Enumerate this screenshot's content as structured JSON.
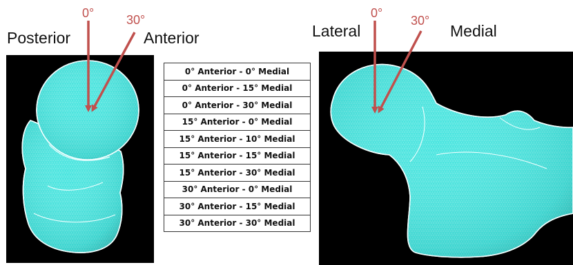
{
  "labels": {
    "posterior": "Posterior",
    "anterior": "Anterior",
    "lateral": "Lateral",
    "medial": "Medial"
  },
  "angles": {
    "left_zero": "0°",
    "left_thirty": "30°",
    "right_zero": "0°",
    "right_thirty": "30°"
  },
  "configurations": [
    "0° Anterior - 0° Medial",
    "0° Anterior - 15° Medial",
    "0° Anterior - 30° Medial",
    "15° Anterior - 0° Medial",
    "15° Anterior - 10° Medial",
    "15° Anterior - 15° Medial",
    "15° Anterior - 30° Medial",
    "30° Anterior - 0° Medial",
    "30° Anterior - 15° Medial",
    "30° Anterior - 30° Medial"
  ],
  "colors": {
    "bone_mesh": "#40e5e0",
    "arrow": "#c0504d",
    "panel_background": "#000000"
  }
}
